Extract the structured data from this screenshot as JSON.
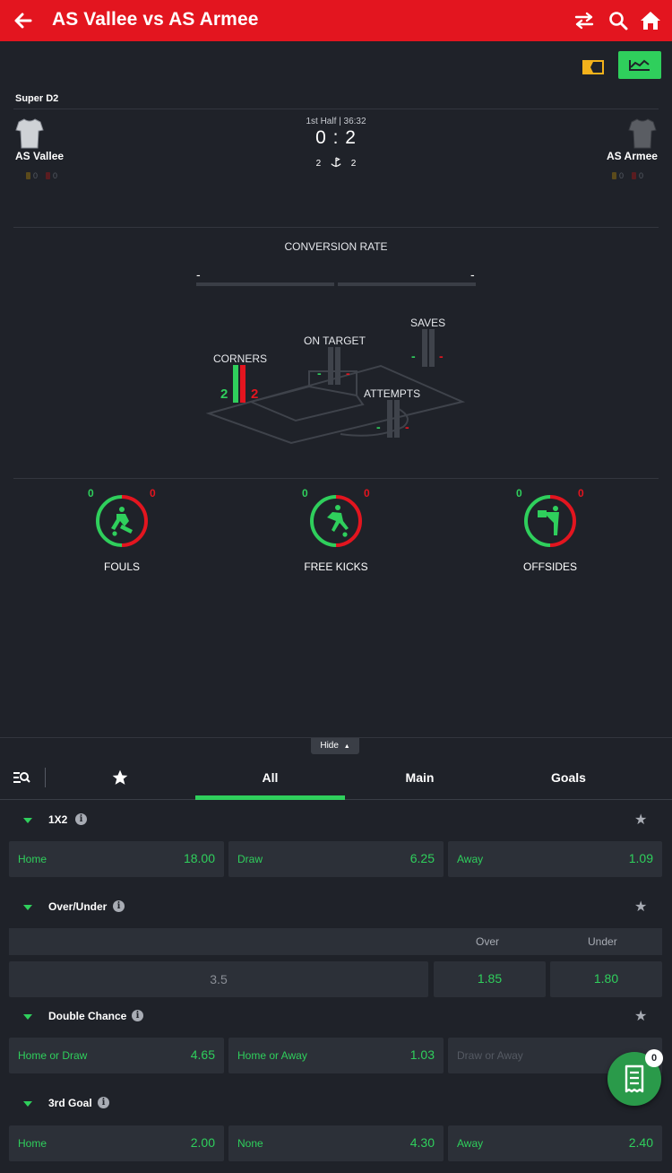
{
  "header": {
    "title": "AS Vallee vs AS Armee",
    "icons": [
      "back-arrow-icon",
      "swap-icon",
      "search-icon",
      "home-icon"
    ],
    "bg_color": "#e3151f"
  },
  "match": {
    "league": "Super D2",
    "period": "1st Half | 36:32",
    "score": "0 : 2",
    "home": {
      "name": "AS Vallee",
      "yellow": "0",
      "red": "0",
      "corners": "2"
    },
    "away": {
      "name": "AS Armee",
      "yellow": "0",
      "red": "0",
      "corners": "2"
    }
  },
  "stats": {
    "conversion_title": "CONVERSION RATE",
    "conversion_home": "-",
    "conversion_away": "-",
    "corners": {
      "label": "CORNERS",
      "home": "2",
      "away": "2"
    },
    "on_target": {
      "label": "ON TARGET",
      "home": "-",
      "away": "-"
    },
    "saves": {
      "label": "SAVES",
      "home": "-",
      "away": "-"
    },
    "attempts": {
      "label": "ATTEMPTS",
      "home": "-",
      "away": "-"
    },
    "fouls": {
      "label": "FOULS",
      "home": "0",
      "away": "0"
    },
    "free_kicks": {
      "label": "FREE KICKS",
      "home": "0",
      "away": "0"
    },
    "offsides": {
      "label": "OFFSIDES",
      "home": "0",
      "away": "0"
    }
  },
  "hide_label": "Hide",
  "tabs": [
    "All",
    "Main",
    "Goals"
  ],
  "active_tab": "All",
  "markets": {
    "m1x2": {
      "name": "1X2",
      "home_label": "Home",
      "home_odd": "18.00",
      "draw_label": "Draw",
      "draw_odd": "6.25",
      "away_label": "Away",
      "away_odd": "1.09"
    },
    "over_under": {
      "name": "Over/Under",
      "over_header": "Over",
      "under_header": "Under",
      "line": "3.5",
      "over_odd": "1.85",
      "under_odd": "1.80"
    },
    "double_chance": {
      "name": "Double Chance",
      "a_label": "Home or Draw",
      "a_odd": "4.65",
      "b_label": "Home or Away",
      "b_odd": "1.03",
      "c_label": "Draw or Away"
    },
    "third_goal": {
      "name": "3rd Goal",
      "home_label": "Home",
      "home_odd": "2.00",
      "none_label": "None",
      "none_odd": "4.30",
      "away_label": "Away",
      "away_odd": "2.40"
    }
  },
  "betslip_count": "0",
  "colors": {
    "accent_green": "#2fcf5c",
    "accent_red": "#e3151f",
    "background": "#1f2229",
    "tile": "#2c3038"
  }
}
